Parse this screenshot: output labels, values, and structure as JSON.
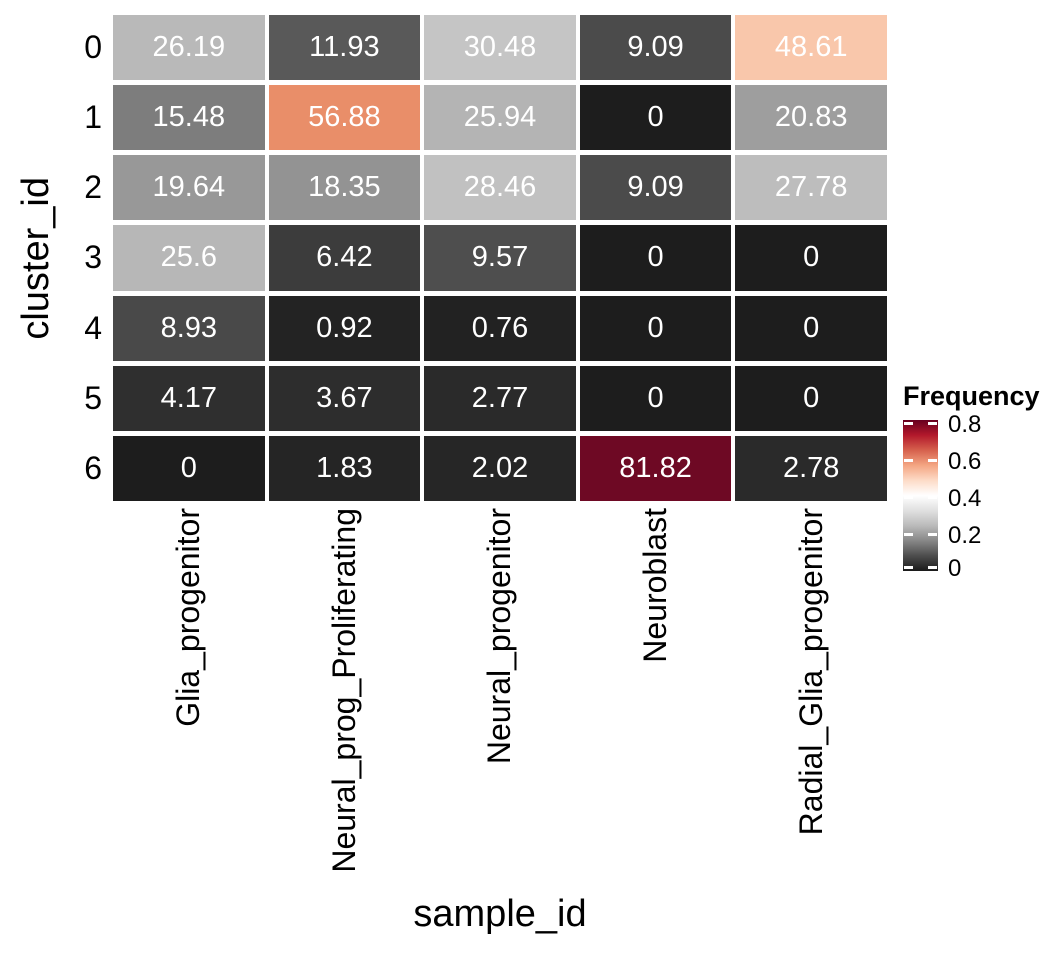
{
  "figure": {
    "background": "#FFFFFF"
  },
  "chart_data": {
    "type": "heatmap",
    "title": "",
    "xlabel": "sample_id",
    "ylabel": "cluster_id",
    "columns": [
      "Glia_progenitor",
      "Neural_prog_Proliferating",
      "Neural_progenitor",
      "Neuroblast",
      "Radial_Glia_progenitor"
    ],
    "rows": [
      "0",
      "1",
      "2",
      "3",
      "4",
      "5",
      "6"
    ],
    "values": [
      [
        26.19,
        11.93,
        30.48,
        9.09,
        48.61
      ],
      [
        15.48,
        56.88,
        25.94,
        0,
        20.83
      ],
      [
        19.64,
        18.35,
        28.46,
        9.09,
        27.78
      ],
      [
        25.6,
        6.42,
        9.57,
        0,
        0
      ],
      [
        8.93,
        0.92,
        0.76,
        0,
        0
      ],
      [
        4.17,
        3.67,
        2.77,
        0,
        0
      ],
      [
        0,
        1.83,
        2.02,
        81.82,
        2.78
      ]
    ],
    "value_labels": [
      [
        "26.19",
        "11.93",
        "30.48",
        "9.09",
        "48.61"
      ],
      [
        "15.48",
        "56.88",
        "25.94",
        "0",
        "20.83"
      ],
      [
        "19.64",
        "18.35",
        "28.46",
        "9.09",
        "27.78"
      ],
      [
        "25.6",
        "6.42",
        "9.57",
        "0",
        "0"
      ],
      [
        "8.93",
        "0.92",
        "0.76",
        "0",
        "0"
      ],
      [
        "4.17",
        "3.67",
        "2.77",
        "0",
        "0"
      ],
      [
        "0",
        "1.83",
        "2.02",
        "81.82",
        "2.78"
      ]
    ],
    "cell_colors": [
      [
        "#B9B9B9",
        "#595959",
        "#C5C5C5",
        "#4B4B4B",
        "#F9C7AB"
      ],
      [
        "#7D7D7D",
        "#E98E69",
        "#B4B4B4",
        "#1D1D1D",
        "#9E9E9E"
      ],
      [
        "#989898",
        "#939393",
        "#C1C1C1",
        "#4B4B4B",
        "#BDBDBD"
      ],
      [
        "#B7B7B7",
        "#3C3C3C",
        "#4E4E4E",
        "#1D1D1D",
        "#1D1D1D"
      ],
      [
        "#494949",
        "#232323",
        "#222222",
        "#1D1D1D",
        "#1D1D1D"
      ],
      [
        "#2F2F2F",
        "#2D2D2D",
        "#2A2A2A",
        "#1D1D1D",
        "#1D1D1D"
      ],
      [
        "#1D1D1D",
        "#252525",
        "#262626",
        "#6E0924",
        "#2A2A2A"
      ]
    ],
    "cell_text_color": "#FFFFFF",
    "axis_text_color": "#000000",
    "grid_line_color": "#FFFFFF",
    "legend": {
      "title": "Frequency",
      "position": "right",
      "domain": [
        0,
        0.8182
      ],
      "ticks": [
        {
          "label": "0.8",
          "value": 0.8
        },
        {
          "label": "0.6",
          "value": 0.6
        },
        {
          "label": "0.4",
          "value": 0.4
        },
        {
          "label": "0.2",
          "value": 0.2
        },
        {
          "label": "0",
          "value": 0
        }
      ],
      "colormap_low_to_high": [
        "#1A1A1A",
        "#4D4D4D",
        "#878787",
        "#BABABA",
        "#E0E0E0",
        "#FFFFFF",
        "#FDDBC7",
        "#F4A582",
        "#D6604D",
        "#B2182B",
        "#67001F"
      ],
      "tick_mark_color": "#FFFFFF"
    }
  }
}
